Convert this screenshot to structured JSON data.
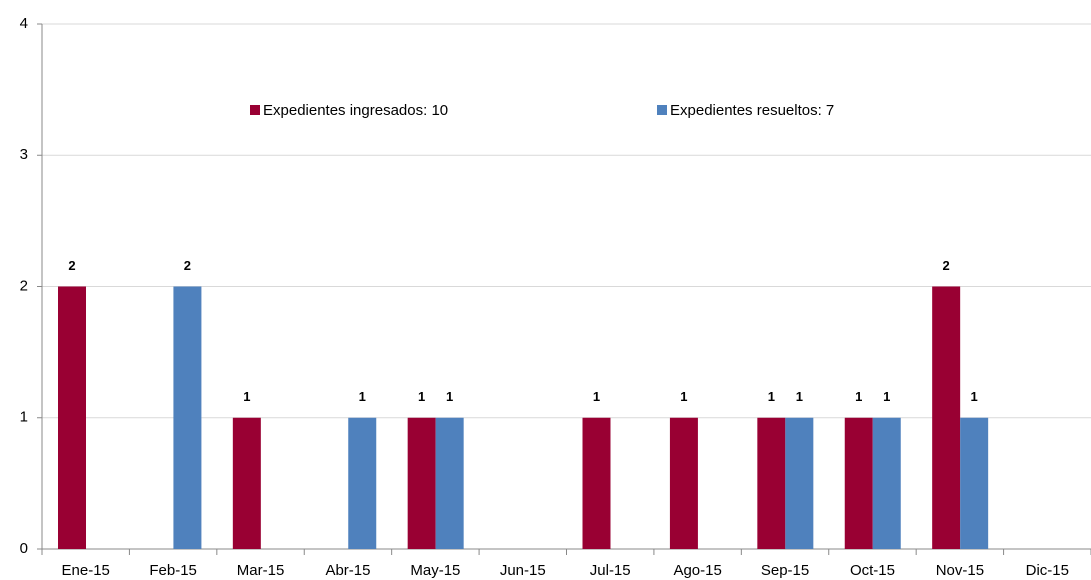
{
  "chart_data": {
    "type": "bar",
    "categories": [
      "Ene-15",
      "Feb-15",
      "Mar-15",
      "Abr-15",
      "May-15",
      "Jun-15",
      "Jul-15",
      "Ago-15",
      "Sep-15",
      "Oct-15",
      "Nov-15",
      "Dic-15"
    ],
    "series": [
      {
        "name": "Expedientes ingresados: 10",
        "color": "#990033",
        "values": [
          2,
          0,
          1,
          0,
          1,
          0,
          1,
          1,
          1,
          1,
          2,
          0
        ]
      },
      {
        "name": "Expedientes resueltos: 7",
        "color": "#4f81bd",
        "values": [
          0,
          2,
          0,
          1,
          1,
          0,
          0,
          0,
          1,
          1,
          1,
          0
        ]
      }
    ],
    "ylim": [
      0,
      4
    ],
    "yticks": [
      0,
      1,
      2,
      3,
      4
    ],
    "grid": true,
    "legend": "top"
  }
}
